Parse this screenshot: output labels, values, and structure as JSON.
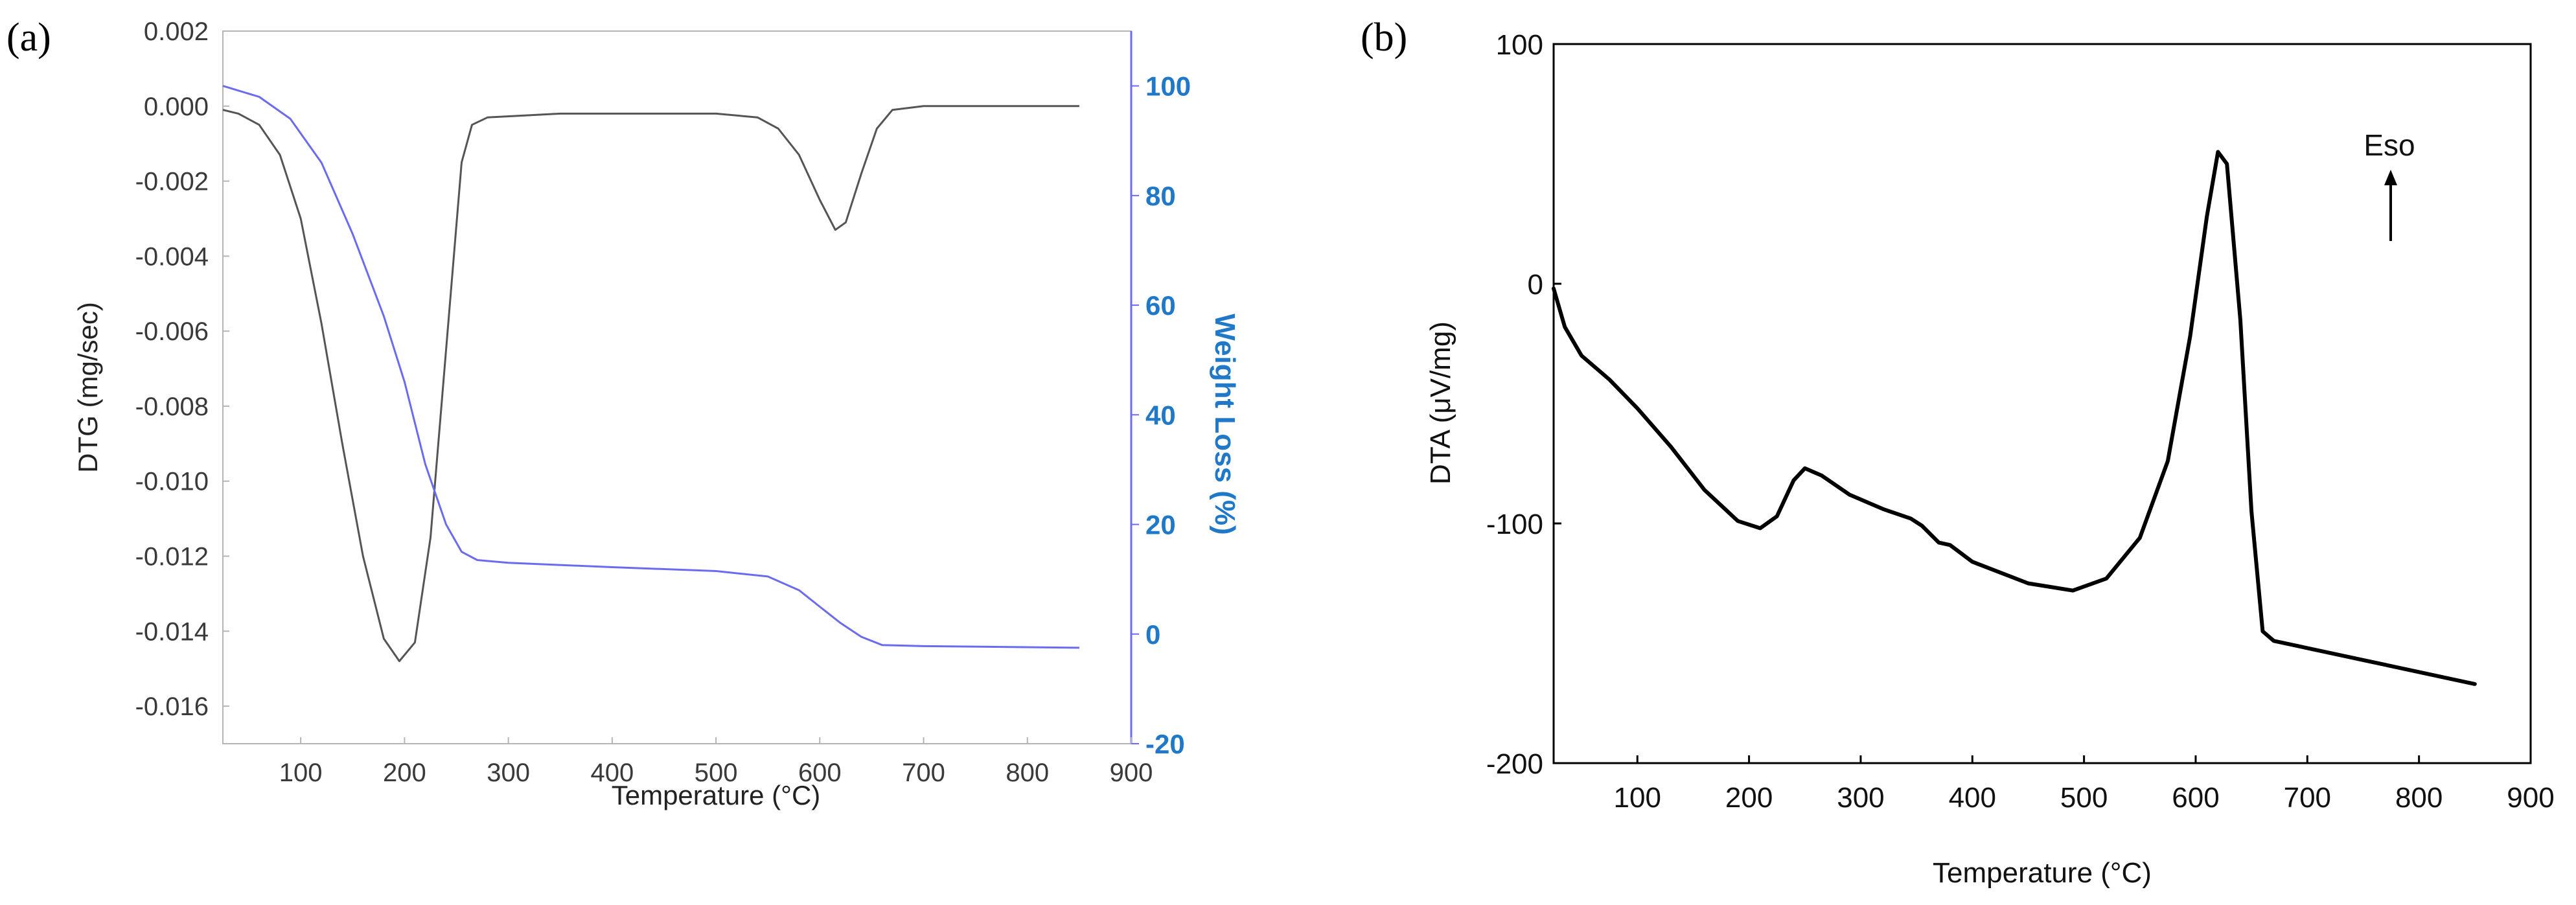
{
  "chart_data": [
    {
      "panel_label": "(a)",
      "type": "line",
      "xlabel": "Temperature (°C)",
      "ylabel": "DTG (mg/sec)",
      "y2label": "Weight Loss (%)",
      "xlim": [
        25,
        900
      ],
      "ylim": [
        -0.017,
        0.002
      ],
      "y2lim": [
        -20,
        110
      ],
      "x_ticks": [
        "100",
        "200",
        "300",
        "400",
        "500",
        "600",
        "700",
        "800",
        "900"
      ],
      "y_ticks": [
        "0.002",
        "0.000",
        "-0.002",
        "-0.004",
        "-0.006",
        "-0.008",
        "-0.010",
        "-0.012",
        "-0.014",
        "-0.016"
      ],
      "y2_ticks": [
        "100",
        "80",
        "60",
        "40",
        "20",
        "0",
        "-20"
      ],
      "colors": {
        "dtg": "#555555",
        "weight": "#6b6bf0",
        "right_axis": "#1f78c8"
      },
      "series": [
        {
          "name": "DTG",
          "axis": "left",
          "points": [
            [
              25,
              -0.0001
            ],
            [
              40,
              -0.0002
            ],
            [
              60,
              -0.0005
            ],
            [
              80,
              -0.0013
            ],
            [
              100,
              -0.003
            ],
            [
              120,
              -0.0058
            ],
            [
              140,
              -0.009
            ],
            [
              160,
              -0.012
            ],
            [
              180,
              -0.0142
            ],
            [
              195,
              -0.0148
            ],
            [
              210,
              -0.0143
            ],
            [
              225,
              -0.0115
            ],
            [
              240,
              -0.0065
            ],
            [
              255,
              -0.0015
            ],
            [
              265,
              -0.0005
            ],
            [
              280,
              -0.0003
            ],
            [
              350,
              -0.0002
            ],
            [
              450,
              -0.0002
            ],
            [
              500,
              -0.0002
            ],
            [
              540,
              -0.0003
            ],
            [
              560,
              -0.0006
            ],
            [
              580,
              -0.0013
            ],
            [
              600,
              -0.0025
            ],
            [
              615,
              -0.0033
            ],
            [
              625,
              -0.0031
            ],
            [
              640,
              -0.0018
            ],
            [
              655,
              -0.0006
            ],
            [
              670,
              -0.0001
            ],
            [
              700,
              0.0
            ],
            [
              850,
              0.0
            ]
          ]
        },
        {
          "name": "Weight Loss",
          "axis": "right",
          "points": [
            [
              25,
              100
            ],
            [
              60,
              98
            ],
            [
              90,
              94
            ],
            [
              120,
              86
            ],
            [
              150,
              73
            ],
            [
              180,
              58
            ],
            [
              200,
              46
            ],
            [
              220,
              31
            ],
            [
              240,
              20
            ],
            [
              255,
              15
            ],
            [
              270,
              13.5
            ],
            [
              300,
              13
            ],
            [
              400,
              12.2
            ],
            [
              500,
              11.5
            ],
            [
              550,
              10.5
            ],
            [
              580,
              8
            ],
            [
              600,
              5
            ],
            [
              620,
              2
            ],
            [
              640,
              -0.5
            ],
            [
              660,
              -2
            ],
            [
              700,
              -2.2
            ],
            [
              850,
              -2.5
            ]
          ]
        }
      ]
    },
    {
      "panel_label": "(b)",
      "type": "line",
      "xlabel": "Temperature (°C)",
      "ylabel": "DTA (μV/mg)",
      "xlim": [
        25,
        900
      ],
      "ylim": [
        -200,
        100
      ],
      "x_ticks": [
        "100",
        "200",
        "300",
        "400",
        "500",
        "600",
        "700",
        "800",
        "900"
      ],
      "y_ticks": [
        "100",
        "0",
        "-100",
        "-200"
      ],
      "annotation": {
        "text": "Eso",
        "x": 775,
        "y": 45
      },
      "colors": {
        "dta": "#000000"
      },
      "series": [
        {
          "name": "DTA",
          "points": [
            [
              25,
              -2
            ],
            [
              35,
              -18
            ],
            [
              50,
              -30
            ],
            [
              75,
              -40
            ],
            [
              100,
              -52
            ],
            [
              130,
              -68
            ],
            [
              160,
              -86
            ],
            [
              190,
              -99
            ],
            [
              210,
              -102
            ],
            [
              225,
              -97
            ],
            [
              240,
              -82
            ],
            [
              250,
              -77
            ],
            [
              265,
              -80
            ],
            [
              290,
              -88
            ],
            [
              320,
              -94
            ],
            [
              345,
              -98
            ],
            [
              355,
              -101
            ],
            [
              370,
              -108
            ],
            [
              380,
              -109
            ],
            [
              400,
              -116
            ],
            [
              450,
              -125
            ],
            [
              490,
              -128
            ],
            [
              520,
              -123
            ],
            [
              550,
              -106
            ],
            [
              575,
              -74
            ],
            [
              595,
              -22
            ],
            [
              610,
              28
            ],
            [
              620,
              55
            ],
            [
              628,
              50
            ],
            [
              640,
              -15
            ],
            [
              650,
              -95
            ],
            [
              660,
              -145
            ],
            [
              670,
              -149
            ],
            [
              700,
              -152
            ],
            [
              750,
              -157
            ],
            [
              800,
              -162
            ],
            [
              850,
              -167
            ]
          ]
        }
      ]
    }
  ]
}
